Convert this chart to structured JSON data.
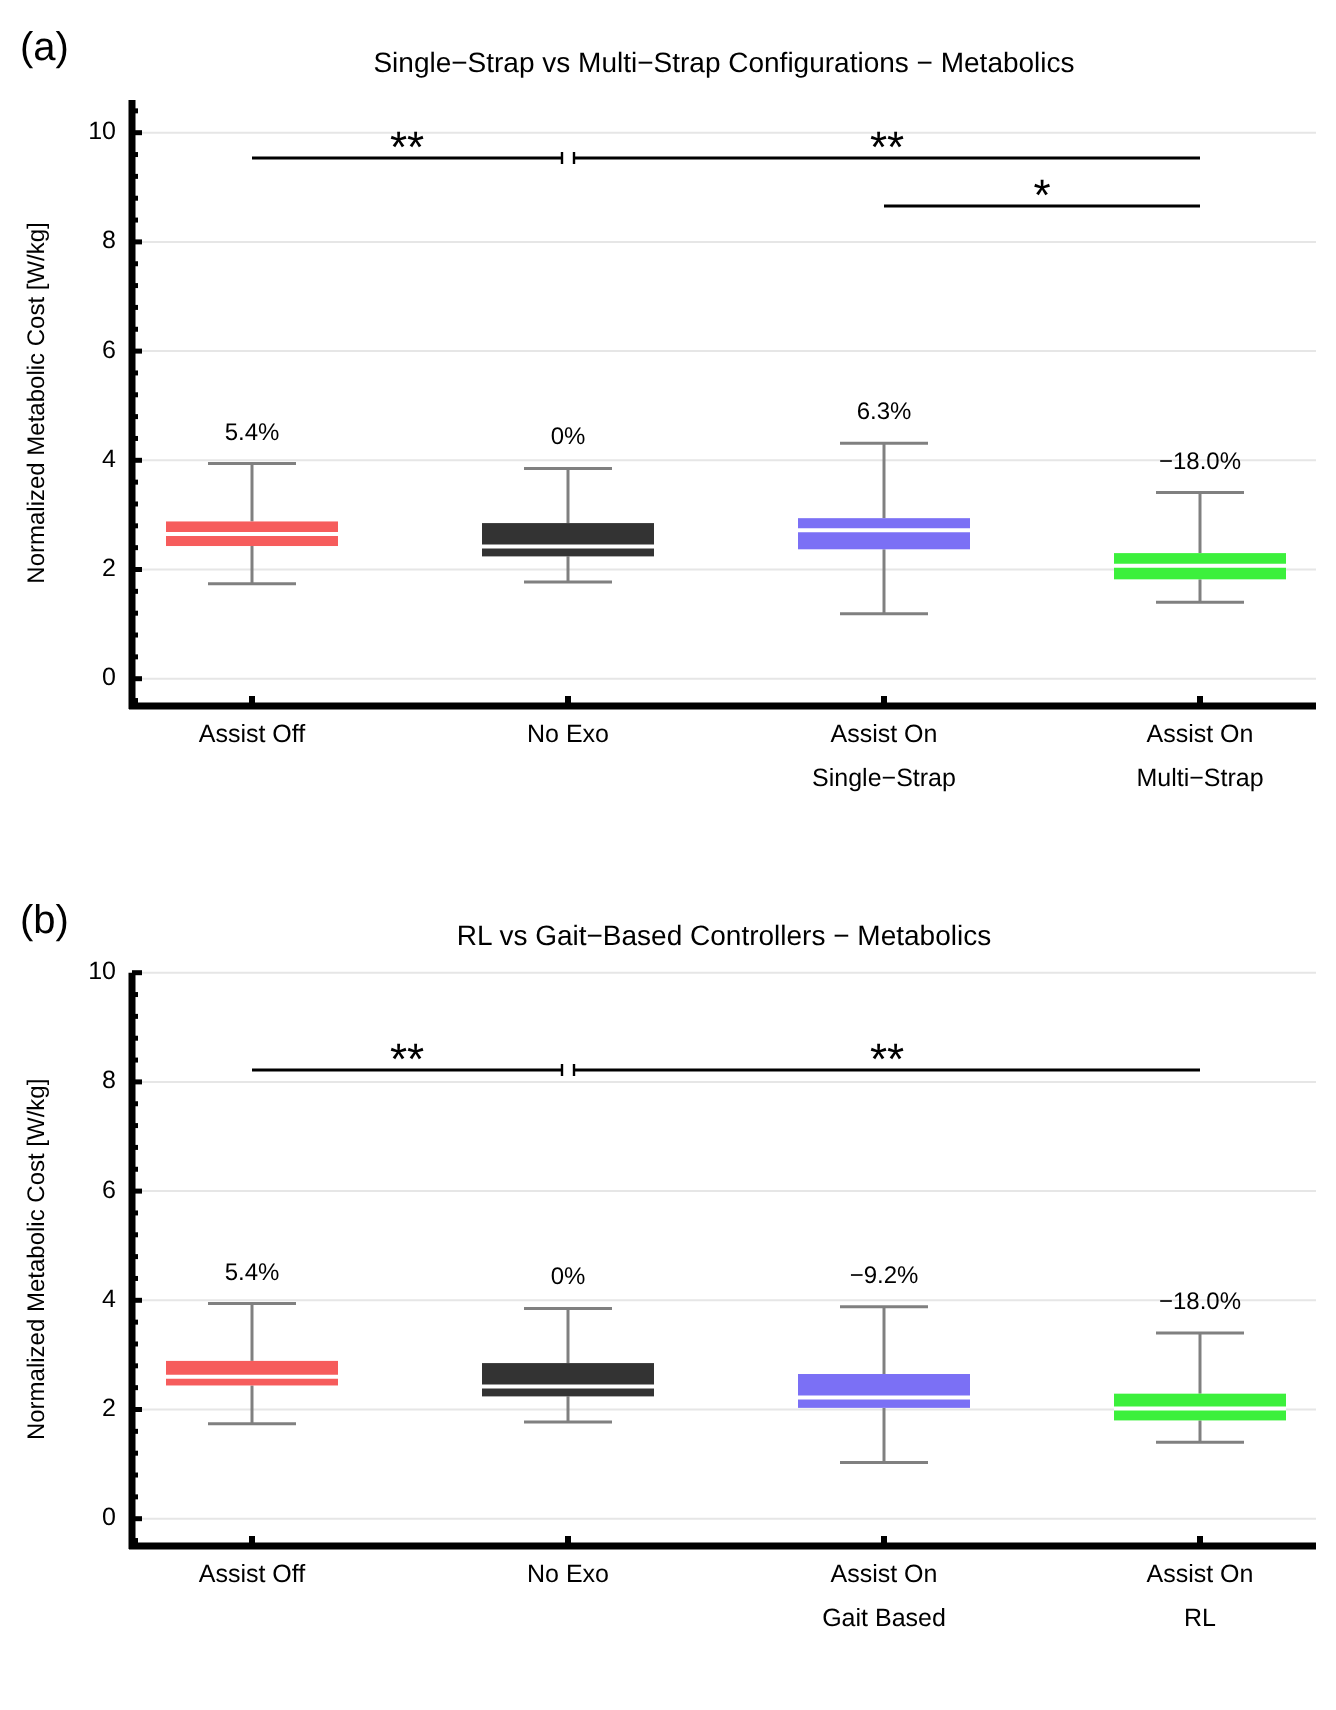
{
  "chart_data": [
    {
      "type": "box",
      "title": "Single−Strap vs Multi−Strap Configurations − Metabolics",
      "ylabel": "Normalized Metabolic Cost [W/kg]",
      "categories": [
        "Assist Off",
        "No Exo",
        "Assist On\nSingle−Strap",
        "Assist On\nMulti−Strap"
      ],
      "colors": [
        "#f65c5c",
        "#333333",
        "#7b70f5",
        "#3cf03c"
      ],
      "boxes": [
        {
          "low": 1.74,
          "q1": 2.43,
          "median": 2.65,
          "q3": 2.88,
          "high": 3.94
        },
        {
          "low": 1.77,
          "q1": 2.24,
          "median": 2.42,
          "q3": 2.85,
          "high": 3.85
        },
        {
          "low": 1.19,
          "q1": 2.37,
          "median": 2.72,
          "q3": 2.94,
          "high": 4.31
        },
        {
          "low": 1.4,
          "q1": 1.82,
          "median": 2.07,
          "q3": 2.3,
          "high": 3.41
        }
      ],
      "ylim": [
        -0.5,
        10.6
      ],
      "yticks": [
        {
          "value": -0.4,
          "label": null
        },
        0,
        {
          "value": 0.4,
          "label": null
        },
        {
          "value": 0.8,
          "label": null
        },
        {
          "value": 1.2,
          "label": null
        },
        {
          "value": 1.6,
          "label": null
        },
        2,
        {
          "value": 2.4,
          "label": null
        },
        {
          "value": 2.8,
          "label": null
        },
        {
          "value": 3.2,
          "label": null
        },
        {
          "value": 3.6,
          "label": null
        },
        4,
        {
          "value": 4.4,
          "label": null
        },
        {
          "value": 4.8,
          "label": null
        },
        {
          "value": 5.2,
          "label": null
        },
        {
          "value": 5.6,
          "label": null
        },
        6,
        {
          "value": 6.4,
          "label": null
        },
        {
          "value": 6.8,
          "label": null
        },
        {
          "value": 7.2,
          "label": null
        },
        {
          "value": 7.6,
          "label": null
        },
        8,
        {
          "value": 8.4,
          "label": null
        },
        {
          "value": 8.8,
          "label": null
        },
        {
          "value": 9.2,
          "label": null
        },
        {
          "value": 9.6,
          "label": null
        },
        10,
        {
          "value": 10.4,
          "label": null
        }
      ],
      "grid": "y",
      "annotations": [
        "(a)",
        "5.4%",
        "0%",
        "6.3%",
        "−18.0%",
        "**",
        "**",
        "*"
      ]
    },
    {
      "type": "box",
      "title": "RL vs Gait−Based Controllers − Metabolics",
      "ylabel": "Normalized Metabolic Cost [W/kg]",
      "categories": [
        "Assist Off",
        "No Exo",
        "Assist On\nGait Based",
        "Assist On\nRL"
      ],
      "colors": [
        "#f65c5c",
        "#333333",
        "#7b70f5",
        "#3cf03c"
      ],
      "boxes": [
        {
          "low": 1.74,
          "q1": 2.44,
          "median": 2.6,
          "q3": 2.89,
          "high": 3.94
        },
        {
          "low": 1.77,
          "q1": 2.24,
          "median": 2.42,
          "q3": 2.85,
          "high": 3.85
        },
        {
          "low": 1.03,
          "q1": 2.03,
          "median": 2.22,
          "q3": 2.65,
          "high": 3.88
        },
        {
          "low": 1.4,
          "q1": 1.8,
          "median": 2.02,
          "q3": 2.29,
          "high": 3.4
        }
      ],
      "ylim": [
        -0.5,
        10
      ],
      "yticks": [
        {
          "value": -0.4,
          "label": null
        },
        0,
        {
          "value": 0.4,
          "label": null
        },
        {
          "value": 0.8,
          "label": null
        },
        {
          "value": 1.2,
          "label": null
        },
        {
          "value": 1.6,
          "label": null
        },
        2,
        {
          "value": 2.4,
          "label": null
        },
        {
          "value": 2.8,
          "label": null
        },
        {
          "value": 3.2,
          "label": null
        },
        {
          "value": 3.6,
          "label": null
        },
        4,
        {
          "value": 4.4,
          "label": null
        },
        {
          "value": 4.8,
          "label": null
        },
        {
          "value": 5.2,
          "label": null
        },
        {
          "value": 5.6,
          "label": null
        },
        6,
        {
          "value": 6.4,
          "label": null
        },
        {
          "value": 6.8,
          "label": null
        },
        {
          "value": 7.2,
          "label": null
        },
        {
          "value": 7.6,
          "label": null
        },
        8,
        {
          "value": 8.4,
          "label": null
        },
        {
          "value": 8.8,
          "label": null
        },
        {
          "value": 9.2,
          "label": null
        },
        {
          "value": 9.6,
          "label": null
        },
        10
      ],
      "grid": "y",
      "annotations": [
        "(b)",
        "5.4%",
        "0%",
        "−9.2%",
        "−18.0%",
        "**",
        "**"
      ]
    }
  ]
}
